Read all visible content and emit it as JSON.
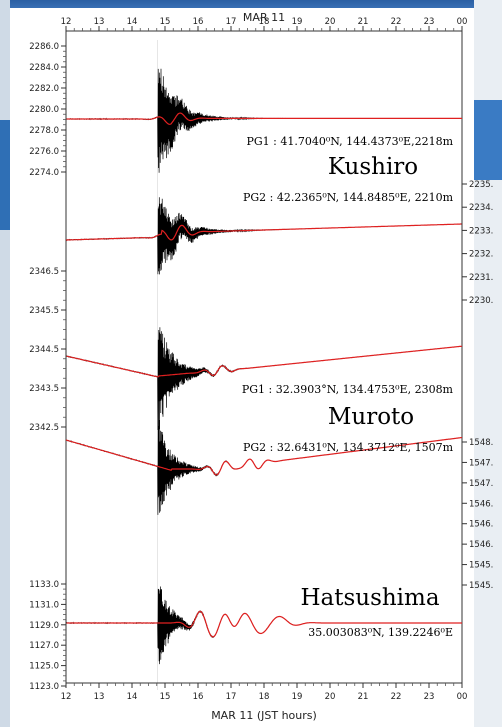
{
  "chart_data": {
    "type": "line",
    "top_axis": {
      "label": "MAR 11",
      "ticks": [
        "12",
        "13",
        "14",
        "15",
        "16",
        "17",
        "18",
        "19",
        "20",
        "21",
        "22",
        "23",
        "00"
      ]
    },
    "bottom_axis": {
      "ticks": [
        "12",
        "13",
        "14",
        "15",
        "16",
        "17",
        "18",
        "19",
        "20",
        "21",
        "22",
        "23",
        "00"
      ],
      "label": "MAR 11 (JST hours)"
    },
    "xlim": [
      12,
      24
    ],
    "y_axes": {
      "kushiro_pg1": {
        "ylim": [
          2273,
          2286
        ],
        "ticks": [
          "2286.0",
          "2284.0",
          "2282.0",
          "2280.0",
          "2278.0",
          "2276.0",
          "2274.0"
        ]
      },
      "muroto_pg1": {
        "ylim": [
          2342.5,
          2346.5
        ],
        "ticks": [
          "2346.5",
          "2345.5",
          "2344.5",
          "2343.5",
          "2342.5"
        ]
      },
      "hatsushima": {
        "ylim": [
          1123,
          1133
        ],
        "ticks": [
          "1133.0",
          "1131.0",
          "1129.0",
          "1127.0",
          "1125.0",
          "1123.0"
        ]
      },
      "right_partial_labels": [
        "2235.",
        "2234.",
        "2233.",
        "2232.",
        "2231.",
        "2230.",
        "1548.",
        "1547.",
        "1547.",
        "1546.",
        "1546.",
        "1546.",
        "1545.",
        "1545."
      ]
    },
    "stations": [
      {
        "name": "Kushiro",
        "sensors": [
          {
            "id": "PG1",
            "label": "PG1 : 41.7040⁰N, 144.4373⁰E,2218m",
            "baseline": 2279.2
          },
          {
            "id": "PG2",
            "label": "PG2 : 42.2365⁰N, 144.8485⁰E, 2210m"
          }
        ]
      },
      {
        "name": "Muroto",
        "sensors": [
          {
            "id": "PG1",
            "label": "PG1 : 32.3903°N, 134.4753⁰E, 2308m",
            "baseline": 2344.3
          },
          {
            "id": "PG2",
            "label": "PG2 : 32.6431⁰N, 134.3712⁰E, 1507m"
          }
        ]
      },
      {
        "name": "Hatsushima",
        "sensors": [
          {
            "id": "single",
            "label": "35.003083⁰N, 139.2246⁰E",
            "baseline": 1128.3
          }
        ]
      }
    ],
    "event_time": 14.78,
    "colors": {
      "raw": "#000000",
      "filtered": "#e02020"
    },
    "grid": false
  }
}
